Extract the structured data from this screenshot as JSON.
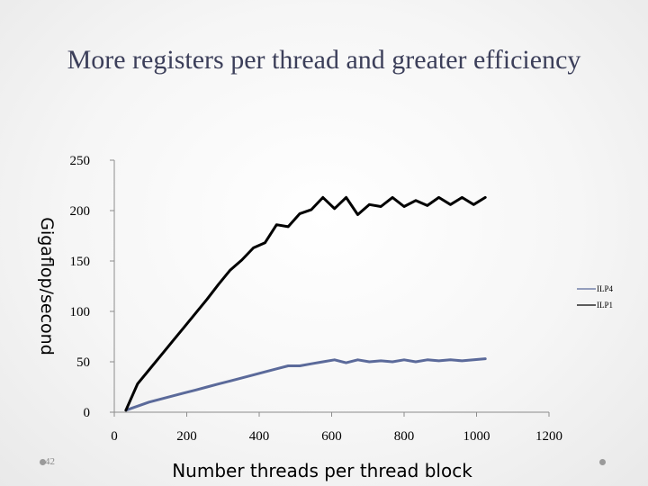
{
  "slide": {
    "title": "More registers per thread and greater efficiency",
    "page_number": "42"
  },
  "colors": {
    "ILP4": "#5b6a9a",
    "ILP1": "#000000",
    "axis": "#8c8c8c",
    "title": "#3c3f5a"
  },
  "chart_data": {
    "type": "line",
    "title": "",
    "xlabel": "Number threads per thread block",
    "ylabel": "Gigaflop/second",
    "xlim": [
      0,
      1200
    ],
    "ylim": [
      0,
      250
    ],
    "x_ticks": [
      "0",
      "200",
      "400",
      "600",
      "800",
      "1000",
      "1200"
    ],
    "y_ticks": [
      "0",
      "50",
      "100",
      "150",
      "200",
      "250"
    ],
    "grid": false,
    "legend_position": "right",
    "series": [
      {
        "name": "ILP4",
        "points": [
          [
            32,
            2
          ],
          [
            64,
            6
          ],
          [
            96,
            10
          ],
          [
            128,
            13
          ],
          [
            160,
            16
          ],
          [
            192,
            19
          ],
          [
            224,
            22
          ],
          [
            256,
            25
          ],
          [
            288,
            28
          ],
          [
            320,
            31
          ],
          [
            352,
            34
          ],
          [
            384,
            37
          ],
          [
            416,
            40
          ],
          [
            448,
            43
          ],
          [
            480,
            46
          ],
          [
            512,
            46
          ],
          [
            544,
            48
          ],
          [
            576,
            50
          ],
          [
            608,
            52
          ],
          [
            640,
            49
          ],
          [
            672,
            52
          ],
          [
            704,
            50
          ],
          [
            736,
            51
          ],
          [
            768,
            50
          ],
          [
            800,
            52
          ],
          [
            832,
            50
          ],
          [
            864,
            52
          ],
          [
            896,
            51
          ],
          [
            928,
            52
          ],
          [
            960,
            51
          ],
          [
            992,
            52
          ],
          [
            1024,
            53
          ]
        ]
      },
      {
        "name": "ILP1",
        "points": [
          [
            32,
            2
          ],
          [
            64,
            28
          ],
          [
            96,
            42
          ],
          [
            128,
            56
          ],
          [
            160,
            70
          ],
          [
            192,
            84
          ],
          [
            224,
            98
          ],
          [
            256,
            112
          ],
          [
            288,
            127
          ],
          [
            320,
            141
          ],
          [
            352,
            151
          ],
          [
            384,
            163
          ],
          [
            416,
            168
          ],
          [
            448,
            186
          ],
          [
            480,
            184
          ],
          [
            512,
            197
          ],
          [
            544,
            201
          ],
          [
            576,
            213
          ],
          [
            608,
            202
          ],
          [
            640,
            213
          ],
          [
            672,
            196
          ],
          [
            704,
            206
          ],
          [
            736,
            204
          ],
          [
            768,
            213
          ],
          [
            800,
            204
          ],
          [
            832,
            210
          ],
          [
            864,
            205
          ],
          [
            896,
            213
          ],
          [
            928,
            206
          ],
          [
            960,
            213
          ],
          [
            992,
            206
          ],
          [
            1024,
            213
          ]
        ]
      }
    ]
  }
}
